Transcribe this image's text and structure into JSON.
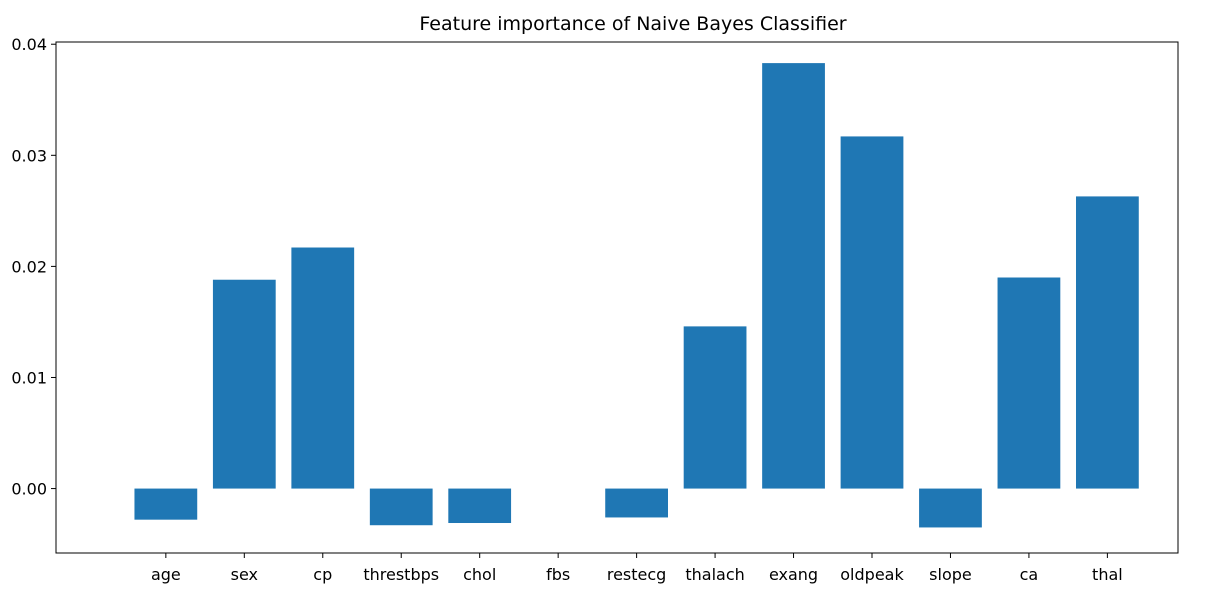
{
  "chart_data": {
    "type": "bar",
    "title": "Feature importance of Naive Bayes Classifier",
    "xlabel": "",
    "ylabel": "",
    "categories": [
      "age",
      "sex",
      "cp",
      "threstbps",
      "chol",
      "fbs",
      "restecg",
      "thalach",
      "exang",
      "oldpeak",
      "slope",
      "ca",
      "thal"
    ],
    "values": [
      -0.0028,
      0.0188,
      0.0217,
      -0.0033,
      -0.0031,
      0.0,
      -0.0026,
      0.0146,
      0.0383,
      0.0317,
      -0.0035,
      0.019,
      0.0263
    ],
    "ylim": [
      -0.0058,
      0.0402
    ],
    "yticks": [
      0.0,
      0.01,
      0.02,
      0.03,
      0.04
    ],
    "ytick_labels": [
      "0.00",
      "0.01",
      "0.02",
      "0.03",
      "0.04"
    ],
    "grid": false,
    "legend": "none",
    "bar_color": "#1f77b4"
  }
}
